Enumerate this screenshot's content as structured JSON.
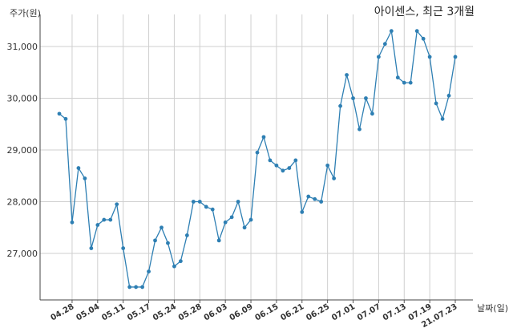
{
  "chart_data": {
    "type": "line",
    "title": "아이센스, 최근 3개월",
    "ylabel": "주가(원)",
    "xlabel": "날짜(일)",
    "ylim": [
      26000,
      31500
    ],
    "yticks": [
      27000,
      28000,
      29000,
      30000,
      31000
    ],
    "ytick_labels": [
      "27,000",
      "28,000",
      "29,000",
      "30,000",
      "31,000"
    ],
    "x_tick_labels": [
      "04.28",
      "05.04",
      "05.11",
      "05.17",
      "05.24",
      "05.28",
      "06.03",
      "06.09",
      "06.15",
      "06.21",
      "06.25",
      "07.01",
      "07.07",
      "07.13",
      "07.19",
      "21.07.23"
    ],
    "x_tick_index": [
      2,
      6,
      10,
      14,
      18,
      22,
      26,
      30,
      34,
      38,
      42,
      46,
      50,
      54,
      58,
      62
    ],
    "grid": true,
    "line_color": "#2e7fb3",
    "series": [
      {
        "values": [
          29700,
          29600,
          27600,
          28650,
          28450,
          27100,
          27550,
          27650,
          27650,
          27950,
          27100,
          26350,
          26350,
          26350,
          26650,
          27250,
          27500,
          27200,
          26750,
          26850,
          27350,
          28000,
          28000,
          27900,
          27850,
          27250,
          27600,
          27700,
          28000,
          27500,
          27650,
          28950,
          29250,
          28800,
          28700,
          28600,
          28650,
          28800,
          27800,
          28100,
          28050,
          28000,
          28700,
          28450,
          29850,
          30450,
          30000,
          29400,
          30000,
          29700,
          30800,
          31050,
          31300,
          30400,
          30300,
          30300,
          31300,
          31150,
          30800,
          29900,
          29600,
          30050,
          30800
        ]
      }
    ]
  }
}
